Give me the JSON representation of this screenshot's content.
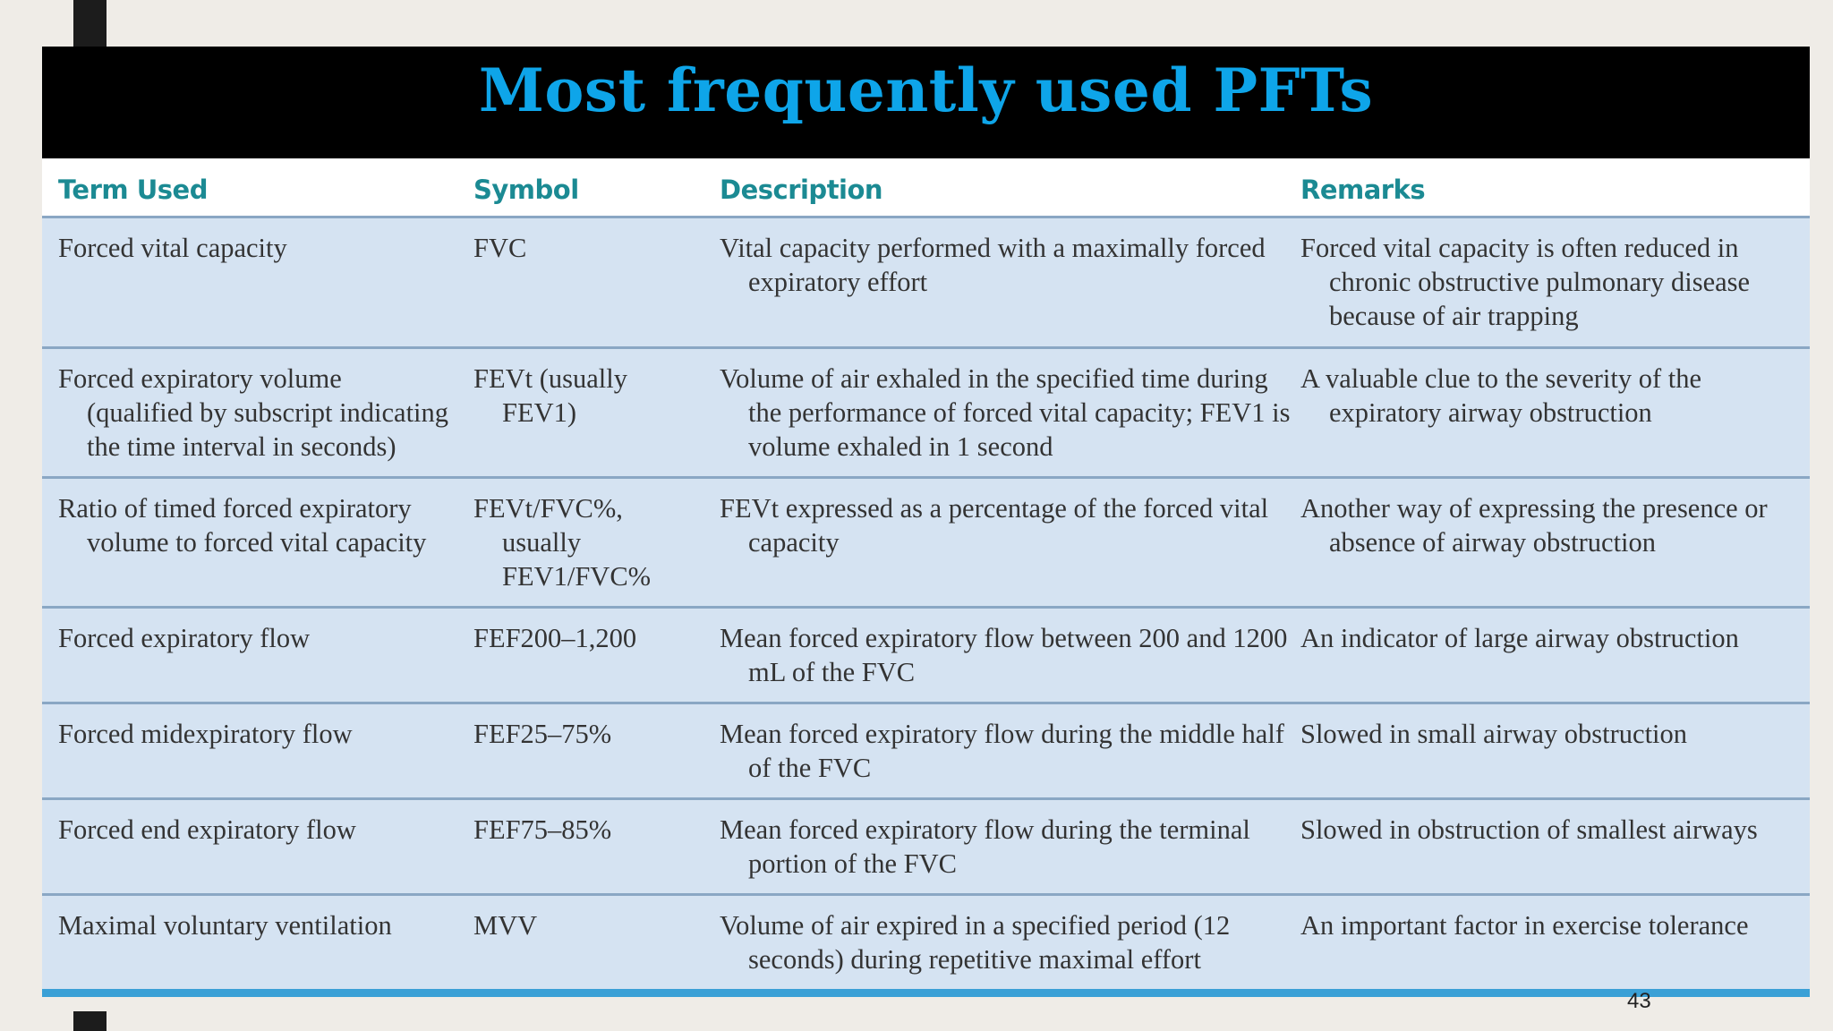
{
  "slide": {
    "title": "Most frequently used PFTs",
    "page_number": "43"
  },
  "table": {
    "headers": [
      "Term Used",
      "Symbol",
      "Description",
      "Remarks"
    ],
    "rows": [
      {
        "term": "Forced vital capacity",
        "symbol": "FVC",
        "description": "Vital capacity performed with a maximally forced expiratory effort",
        "remarks": "Forced vital capacity is often reduced in chronic obstructive pulmonary disease because of air trapping"
      },
      {
        "term": "Forced expiratory volume (qualified by subscript indicating the time interval in seconds)",
        "symbol": "FEVt (usually FEV1)",
        "description": "Volume of air exhaled in the specified time during the performance of forced vital capacity; FEV1 is volume exhaled in 1 second",
        "remarks": "A valuable clue to the severity of the expiratory airway obstruction"
      },
      {
        "term": "Ratio of timed forced expiratory volume to forced vital capacity",
        "symbol": "FEVt/FVC%, usually FEV1/FVC%",
        "description": "FEVt expressed as a percentage of the forced vital capacity",
        "remarks": "Another way of expressing the presence or absence of airway obstruction"
      },
      {
        "term": "Forced expiratory flow",
        "symbol": "FEF200–1,200",
        "description": "Mean forced expiratory flow between 200 and 1200 mL of the FVC",
        "remarks": "An indicator of large airway obstruction"
      },
      {
        "term": "Forced midexpiratory flow",
        "symbol": "FEF25–75%",
        "description": "Mean forced expiratory flow during the middle half of the FVC",
        "remarks": "Slowed in small airway obstruction"
      },
      {
        "term": "Forced end expiratory flow",
        "symbol": "FEF75–85%",
        "description": "Mean forced expiratory flow during the terminal portion of the FVC",
        "remarks": "Slowed in obstruction of smallest airways"
      },
      {
        "term": "Maximal voluntary ventilation",
        "symbol": "MVV",
        "description": "Volume of air expired in a specified period (12 seconds) during repetitive maximal effort",
        "remarks": "An important factor in exercise tolerance"
      }
    ]
  },
  "colors": {
    "title": "#0ea5e9",
    "header_text": "#1b8a93",
    "row_background": "#d5e3f2",
    "title_band": "#000000",
    "bottom_rule": "#3aa0d6"
  }
}
